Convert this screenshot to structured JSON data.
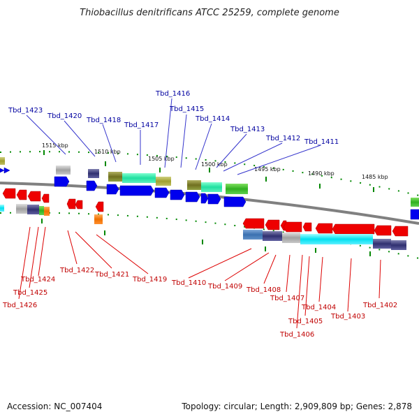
{
  "title": "Thiobacillus denitrificans ATCC 25259, complete genome",
  "footer": {
    "accession": "Accession: NC_007404",
    "topology": "Topology: circular; Length: 2,909,809 bp; Genes: 2,878"
  },
  "kbp_labels": [
    "1515 kbp",
    "1510 kbp",
    "1505 kbp",
    "1500 kbp",
    "1495 kbp",
    "1490 kbp",
    "1485 kbp"
  ],
  "genes_top": [
    "Tbd_1423",
    "Tbd_1420",
    "Tbd_1418",
    "Tbd_1417",
    "Tbd_1416",
    "Tbd_1415",
    "Tbd_1414",
    "Tbd_1413",
    "Tbd_1412",
    "Tbd_1411"
  ],
  "genes_bottom": [
    "Tbd_1426",
    "Tbd_1425",
    "Tbd_1424",
    "Tbd_1422",
    "Tbd_1421",
    "Tbd_1419",
    "Tbd_1410",
    "Tbd_1409",
    "Tbd_1408",
    "Tbd_1407",
    "Tbd_1406",
    "Tbd_1405",
    "Tbd_1404",
    "Tbd_1403",
    "Tbd_1402"
  ],
  "colors": {
    "forward_gene": "#0000ee",
    "reverse_gene": "#ee0000",
    "label_top": "#0000a0",
    "label_bottom": "#c00000",
    "leader_top": "#3333cc",
    "leader_bottom": "#dd0000",
    "backbone": "#808080",
    "tick": "#008800"
  }
}
